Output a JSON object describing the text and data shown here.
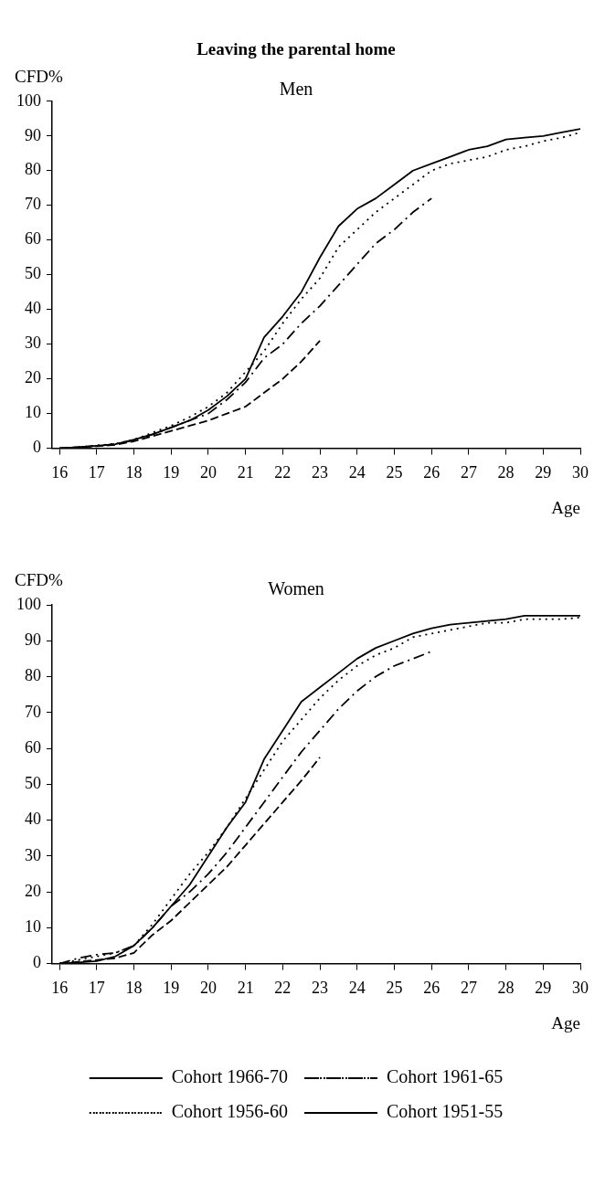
{
  "chart_data": [
    {
      "type": "line",
      "title": "Leaving the parental home",
      "subtitle": "Men",
      "xlabel": "Age",
      "ylabel": "CFD%",
      "xlim": [
        15.8,
        30
      ],
      "xticks": [
        16,
        17,
        18,
        19,
        20,
        21,
        22,
        23,
        24,
        25,
        26,
        27,
        28,
        29,
        30
      ],
      "ylim": [
        0,
        100
      ],
      "yticks": [
        0,
        10,
        20,
        30,
        40,
        50,
        60,
        70,
        80,
        90,
        100
      ],
      "grid": false,
      "legend": false,
      "marker": "none",
      "x": [
        16,
        16.5,
        17,
        17.5,
        18,
        18.5,
        19,
        19.5,
        20,
        20.5,
        21,
        21.5,
        22,
        22.5,
        23,
        23.5,
        24,
        24.5,
        25,
        25.5,
        26,
        26.5,
        27,
        27.5,
        28,
        28.5,
        29,
        29.5,
        30
      ],
      "series": [
        {
          "color": "#000000",
          "line_style": "dashed",
          "values": [
            0,
            0.3,
            0.6,
            1,
            2,
            3.5,
            5,
            6.5,
            8,
            10,
            12,
            16,
            20,
            25,
            31,
            null,
            null,
            null,
            null,
            null,
            null,
            null,
            null,
            null,
            null,
            null,
            null,
            null,
            null
          ]
        },
        {
          "color": "#000000",
          "line_style": "dashdot",
          "values": [
            0,
            0.3,
            0.7,
            1.2,
            2.3,
            4,
            6,
            8,
            10,
            14,
            19,
            26,
            30,
            36,
            41,
            47,
            53,
            59,
            63,
            68,
            72,
            null,
            null,
            null,
            null,
            null,
            null,
            null,
            null
          ]
        },
        {
          "color": "#000000",
          "line_style": "dotted",
          "values": [
            0,
            0.3,
            0.8,
            1.3,
            2.5,
            4.5,
            6.5,
            9,
            12,
            16,
            22,
            28,
            36,
            43,
            49,
            58,
            63,
            68,
            72,
            76,
            80,
            82,
            83,
            84,
            86,
            87,
            88.5,
            89.5,
            91
          ]
        },
        {
          "color": "#000000",
          "line_style": "solid",
          "values": [
            0,
            0.3,
            0.7,
            1.2,
            2.5,
            4,
            6,
            8,
            11,
            15,
            20,
            32,
            38,
            45,
            55,
            64,
            69,
            72,
            76,
            80,
            82,
            84,
            86,
            87,
            89,
            89.5,
            90,
            91,
            92
          ]
        }
      ]
    },
    {
      "type": "line",
      "title": "Women",
      "xlabel": "Age",
      "ylabel": "CFD%",
      "xlim": [
        15.8,
        30
      ],
      "xticks": [
        16,
        17,
        18,
        19,
        20,
        21,
        22,
        23,
        24,
        25,
        26,
        27,
        28,
        29,
        30
      ],
      "ylim": [
        0,
        100
      ],
      "yticks": [
        0,
        10,
        20,
        30,
        40,
        50,
        60,
        70,
        80,
        90,
        100
      ],
      "grid": false,
      "legend": "bottom",
      "marker": "none",
      "x": [
        16,
        16.5,
        17,
        17.5,
        18,
        18.5,
        19,
        19.5,
        20,
        20.5,
        21,
        21.5,
        22,
        22.5,
        23,
        23.5,
        24,
        24.5,
        25,
        25.5,
        26,
        26.5,
        27,
        27.5,
        28,
        28.5,
        29,
        29.5,
        30
      ],
      "series": [
        {
          "name": "Cohort 1966-70",
          "color": "#000000",
          "line_style": "dashed",
          "values": [
            0,
            0.5,
            1,
            1.5,
            3,
            8,
            12,
            17,
            22,
            27,
            33,
            39,
            45,
            51,
            57.5,
            null,
            null,
            null,
            null,
            null,
            null,
            null,
            null,
            null,
            null,
            null,
            null,
            null,
            null
          ]
        },
        {
          "name": "Cohort 1961-65",
          "color": "#000000",
          "line_style": "dashdot",
          "values": [
            0,
            1.5,
            2.5,
            3,
            5,
            10,
            16,
            20,
            25,
            31,
            38,
            45,
            52,
            59,
            65,
            71,
            76,
            80,
            83,
            85,
            87,
            null,
            null,
            null,
            null,
            null,
            null,
            null,
            null
          ]
        },
        {
          "name": "Cohort 1956-60",
          "color": "#000000",
          "line_style": "dotted",
          "values": [
            0,
            1,
            2,
            3,
            5,
            11,
            18,
            25,
            31,
            38,
            46,
            54,
            62,
            68,
            74,
            79,
            83,
            86,
            88,
            91,
            92,
            93,
            94,
            95,
            95,
            96,
            96,
            96,
            96.5
          ]
        },
        {
          "name": "Cohort 1951-55",
          "color": "#000000",
          "line_style": "solid",
          "values": [
            0,
            0.3,
            0.7,
            2,
            5,
            10,
            16,
            22,
            30,
            38,
            45,
            57,
            65,
            73,
            77,
            81,
            85,
            88,
            90,
            92,
            93.5,
            94.5,
            95,
            95.5,
            96,
            97,
            97,
            97,
            97
          ]
        }
      ]
    }
  ]
}
